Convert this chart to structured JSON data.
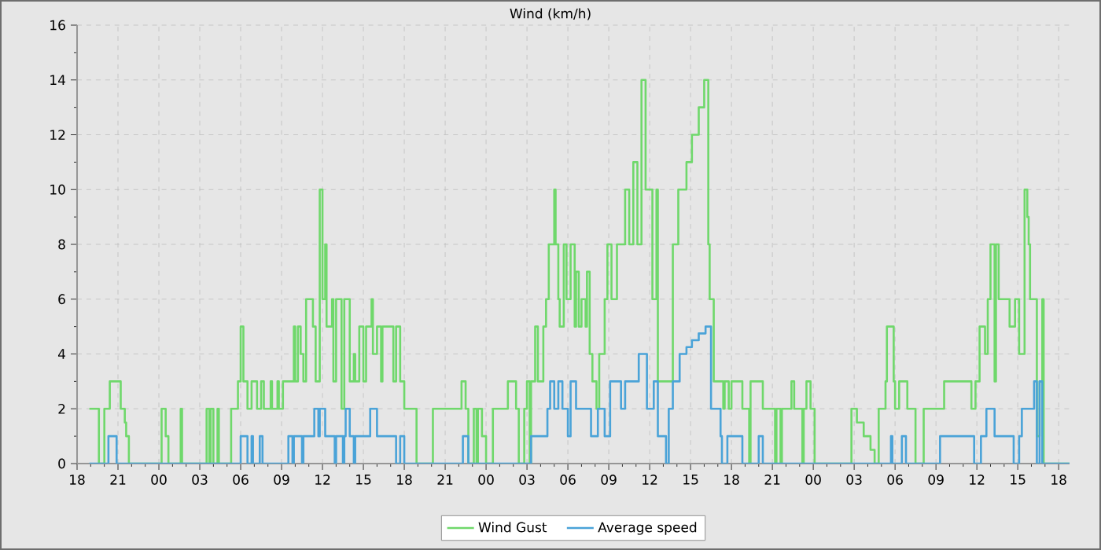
{
  "chart_data": {
    "type": "step",
    "title": "Wind (km/h)",
    "xlim": [
      18,
      90.8
    ],
    "ylim": [
      0,
      16
    ],
    "xticks": [
      {
        "value": 18,
        "label": "18"
      },
      {
        "value": 21,
        "label": "21"
      },
      {
        "value": 24,
        "label": "00"
      },
      {
        "value": 27,
        "label": "03"
      },
      {
        "value": 30,
        "label": "06"
      },
      {
        "value": 33,
        "label": "09"
      },
      {
        "value": 36,
        "label": "12"
      },
      {
        "value": 39,
        "label": "15"
      },
      {
        "value": 42,
        "label": "18"
      },
      {
        "value": 45,
        "label": "21"
      },
      {
        "value": 48,
        "label": "00"
      },
      {
        "value": 51,
        "label": "03"
      },
      {
        "value": 54,
        "label": "06"
      },
      {
        "value": 57,
        "label": "09"
      },
      {
        "value": 60,
        "label": "12"
      },
      {
        "value": 63,
        "label": "15"
      },
      {
        "value": 66,
        "label": "18"
      },
      {
        "value": 69,
        "label": "21"
      },
      {
        "value": 72,
        "label": "00"
      },
      {
        "value": 75,
        "label": "03"
      },
      {
        "value": 78,
        "label": "06"
      },
      {
        "value": 81,
        "label": "09"
      },
      {
        "value": 84,
        "label": "12"
      },
      {
        "value": 87,
        "label": "15"
      },
      {
        "value": 90,
        "label": "18"
      }
    ],
    "yticks": [
      0,
      2,
      4,
      6,
      8,
      10,
      12,
      14,
      16
    ],
    "grid": true,
    "legend": "bottom",
    "line_style": "solid",
    "marker": "none",
    "series": [
      {
        "name": "Wind Gust",
        "color": "#6fd86b",
        "x": [
          18.9,
          19.6,
          20.0,
          20.4,
          21.2,
          21.5,
          21.6,
          21.8,
          24.2,
          24.5,
          24.7,
          25.6,
          25.7,
          27.5,
          27.7,
          27.8,
          28.0,
          28.3,
          28.4,
          29.3,
          29.8,
          30.0,
          30.2,
          30.5,
          30.8,
          31.2,
          31.5,
          31.7,
          32.2,
          32.3,
          32.7,
          32.8,
          33.1,
          33.9,
          34.0,
          34.2,
          34.4,
          34.6,
          34.8,
          35.3,
          35.5,
          35.8,
          36.0,
          36.2,
          36.3,
          36.7,
          36.8,
          37.0,
          37.4,
          37.6,
          38.0,
          38.3,
          38.4,
          38.7,
          39.0,
          39.2,
          39.6,
          39.7,
          40.0,
          40.3,
          40.4,
          41.2,
          41.4,
          41.7,
          42.0,
          42.9,
          44.1,
          46.2,
          46.5,
          46.7,
          47.1,
          47.3,
          47.4,
          47.7,
          48.0,
          48.5,
          49.6,
          50.2,
          50.4,
          50.8,
          51.0,
          51.2,
          51.3,
          51.6,
          51.8,
          52.2,
          52.4,
          52.6,
          53.0,
          53.1,
          53.3,
          53.4,
          53.7,
          53.9,
          54.2,
          54.5,
          54.6,
          54.8,
          55.0,
          55.3,
          55.4,
          55.6,
          55.8,
          56.1,
          56.3,
          56.7,
          56.9,
          57.2,
          57.6,
          57.9,
          58.2,
          58.5,
          58.8,
          59.1,
          59.4,
          59.7,
          60.2,
          60.5,
          60.6,
          61.4,
          61.7,
          62.1,
          62.7,
          63.1,
          63.6,
          64.0,
          64.3,
          64.4,
          64.7,
          65.4,
          65.5,
          65.8,
          66.0,
          66.8,
          67.3,
          67.4,
          68.3,
          69.2,
          69.3,
          69.6,
          69.7,
          70.4,
          70.6,
          71.2,
          71.3,
          71.5,
          71.8,
          72.1,
          74.8,
          75.2,
          75.7,
          76.2,
          76.5,
          76.8,
          77.3,
          77.4,
          77.9,
          78.0,
          78.3,
          78.9,
          79.5,
          80.1,
          81.6,
          83.6,
          83.9,
          84.2,
          84.6,
          84.8,
          85.0,
          85.3,
          85.4,
          85.6,
          86.4,
          86.8,
          87.1,
          87.5,
          87.7,
          87.8,
          87.9,
          88.4,
          88.6,
          88.8,
          88.9,
          90.8
        ],
        "values": [
          2,
          0,
          2,
          3,
          2,
          1.5,
          1,
          0,
          2,
          1,
          0,
          2,
          0,
          2,
          0,
          2,
          0,
          2,
          0,
          2,
          3,
          5,
          3,
          2,
          3,
          2,
          3,
          2,
          3,
          2,
          3,
          2,
          3,
          5,
          3,
          5,
          4,
          3,
          6,
          5,
          3,
          10,
          6,
          8,
          5,
          6,
          3,
          6,
          2,
          6,
          3,
          4,
          3,
          5,
          3,
          5,
          6,
          4,
          5,
          3,
          5,
          3,
          5,
          3,
          2,
          0,
          2,
          3,
          2,
          0,
          2,
          0,
          2,
          1,
          0,
          2,
          3,
          2,
          0,
          2,
          3,
          0,
          3,
          5,
          3,
          5,
          6,
          8,
          10,
          8,
          6,
          5,
          8,
          6,
          8,
          5,
          7,
          5,
          6,
          5,
          7,
          4,
          3,
          2,
          4,
          6,
          8,
          6,
          8,
          8,
          10,
          8,
          11,
          8,
          14,
          10,
          6,
          10,
          3,
          3,
          8,
          10,
          11,
          12,
          13,
          14,
          8,
          6,
          3,
          2,
          3,
          2,
          3,
          2,
          0,
          3,
          2,
          0,
          2,
          0,
          2,
          3,
          2,
          0,
          2,
          3,
          2,
          0,
          2,
          1.5,
          1,
          0.5,
          0,
          2,
          3,
          5,
          3,
          2,
          3,
          2,
          0,
          2,
          3,
          2,
          3,
          5,
          4,
          6,
          8,
          3,
          8,
          6,
          5,
          6,
          4,
          10,
          9,
          8,
          6,
          1,
          3,
          6,
          0,
          0
        ]
      },
      {
        "name": "Average speed",
        "color": "#4aa3d8",
        "x": [
          18.9,
          20.3,
          20.9,
          30.0,
          30.5,
          30.8,
          30.9,
          31.4,
          31.6,
          33.5,
          33.8,
          33.9,
          34.5,
          34.6,
          35.4,
          35.7,
          35.8,
          36.2,
          36.9,
          37.0,
          37.5,
          37.6,
          37.7,
          38.0,
          38.3,
          38.4,
          39.5,
          40.0,
          41.4,
          41.7,
          42.0,
          46.3,
          46.7,
          51.3,
          52.5,
          52.7,
          53.0,
          53.3,
          53.6,
          54.0,
          54.2,
          54.6,
          55.7,
          56.2,
          56.7,
          57.1,
          57.9,
          58.2,
          59.2,
          59.8,
          60.3,
          60.6,
          61.2,
          61.4,
          61.7,
          62.2,
          62.7,
          63.1,
          63.6,
          64.1,
          64.5,
          65.2,
          65.3,
          65.7,
          66.8,
          68.0,
          68.3,
          77.7,
          77.8,
          78.5,
          78.8,
          81.3,
          83.8,
          84.3,
          84.7,
          85.3,
          86.7,
          87.1,
          87.3,
          88.2,
          88.4,
          88.6,
          88.8,
          90.8
        ],
        "values": [
          0,
          1,
          0,
          1,
          0,
          1,
          0,
          1,
          0,
          1,
          0,
          1,
          0,
          1,
          2,
          1,
          2,
          1,
          0,
          1,
          0,
          1,
          2,
          1,
          0,
          1,
          2,
          1,
          0,
          1,
          0,
          1,
          0,
          1,
          2,
          3,
          2,
          3,
          2,
          1,
          3,
          2,
          1,
          2,
          1,
          3,
          2,
          3,
          4,
          2,
          3,
          1,
          0,
          2,
          3,
          4,
          4.25,
          4.5,
          4.75,
          5,
          2,
          1,
          0,
          1,
          0,
          1,
          0,
          1,
          0,
          1,
          0,
          1,
          0,
          1,
          2,
          1,
          0,
          1,
          2,
          3,
          0,
          3,
          0,
          0
        ]
      }
    ]
  }
}
